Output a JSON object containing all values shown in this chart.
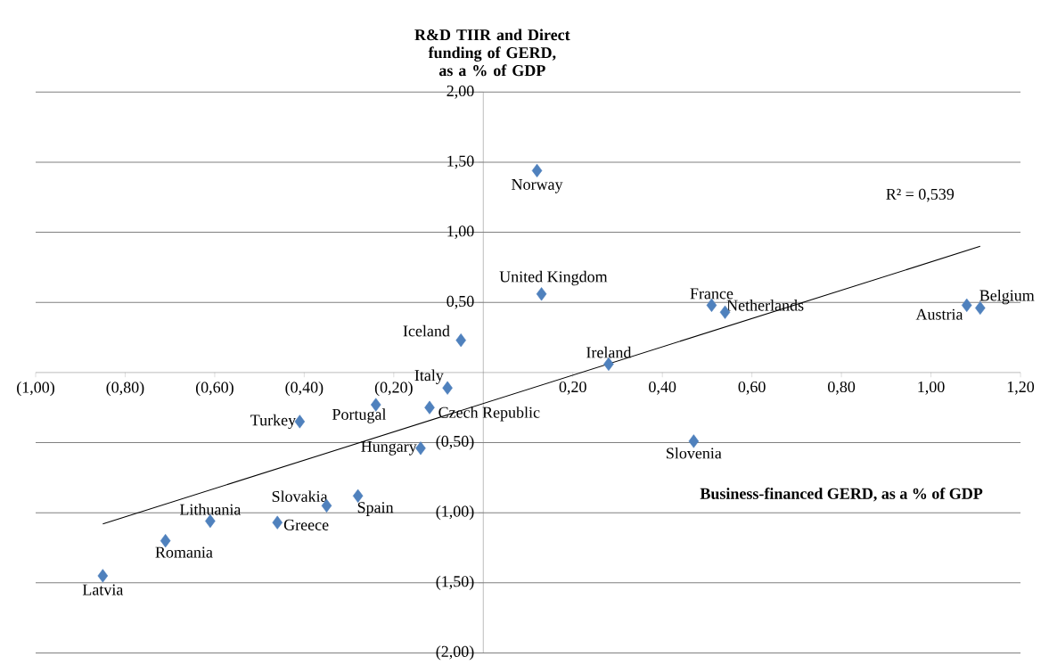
{
  "chart_data": {
    "type": "scatter",
    "ylabel": "R&D TIIR and Direct funding of GERD, as a % of GDP",
    "xlabel": "Business-financed GERD, as a % of GDP",
    "xlim": [
      -1.0,
      1.2
    ],
    "ylim": [
      -2.0,
      2.0
    ],
    "xticks": [
      {
        "value": -1.0,
        "label": "(1,00)"
      },
      {
        "value": -0.8,
        "label": "(0,80)"
      },
      {
        "value": -0.6,
        "label": "(0,60)"
      },
      {
        "value": -0.4,
        "label": "(0,40)"
      },
      {
        "value": -0.2,
        "label": "(0,20)"
      },
      {
        "value": 0,
        "label": null
      },
      {
        "value": 0.2,
        "label": "0,20"
      },
      {
        "value": 0.4,
        "label": "0,40"
      },
      {
        "value": 0.6,
        "label": "0,60"
      },
      {
        "value": 0.8,
        "label": "0,80"
      },
      {
        "value": 1.0,
        "label": "1,00"
      },
      {
        "value": 1.2,
        "label": "1,20"
      }
    ],
    "yticks": [
      {
        "value": -2.0,
        "label": "(2,00)"
      },
      {
        "value": -1.5,
        "label": "(1,50)"
      },
      {
        "value": -1.0,
        "label": "(1,00)"
      },
      {
        "value": -0.5,
        "label": "(0,50)"
      },
      {
        "value": 0,
        "label": null
      },
      {
        "value": 0.5,
        "label": "0,50"
      },
      {
        "value": 1.0,
        "label": "1,00"
      },
      {
        "value": 1.5,
        "label": "1,50"
      },
      {
        "value": 2.0,
        "label": "2,00"
      }
    ],
    "grid": "y",
    "series": [
      {
        "color": "#4f81bd",
        "marker": "diamond",
        "x": [
          0.12,
          0.13,
          0.51,
          0.54,
          1.08,
          1.11,
          0.28,
          -0.05,
          -0.08,
          -0.12,
          -0.24,
          -0.41,
          -0.14,
          0.47,
          -0.35,
          -0.28,
          -0.46,
          -0.61,
          -0.71,
          -0.85
        ],
        "values": [
          1.44,
          0.56,
          0.48,
          0.43,
          0.48,
          0.46,
          0.06,
          0.23,
          -0.11,
          -0.25,
          -0.23,
          -0.35,
          -0.54,
          -0.49,
          -0.95,
          -0.88,
          -1.07,
          -1.06,
          -1.2,
          -1.45
        ]
      },
      {
        "type": "line",
        "color": "#000000",
        "marker": "none",
        "x": [
          -0.85,
          1.11
        ],
        "values": [
          -1.08,
          0.9
        ]
      }
    ],
    "annotations": [
      {
        "text": "Norway",
        "x": 0.12,
        "y": 1.44
      },
      {
        "text": "United Kingdom",
        "x": 0.13,
        "y": 0.56
      },
      {
        "text": "France",
        "x": 0.51,
        "y": 0.48
      },
      {
        "text": "Netherlands",
        "x": 0.54,
        "y": 0.43
      },
      {
        "text": "Austria",
        "x": 1.08,
        "y": 0.48
      },
      {
        "text": "Belgium",
        "x": 1.11,
        "y": 0.46
      },
      {
        "text": "Ireland",
        "x": 0.28,
        "y": 0.06
      },
      {
        "text": "Iceland",
        "x": -0.05,
        "y": 0.23
      },
      {
        "text": "Italy",
        "x": -0.08,
        "y": -0.11
      },
      {
        "text": "Czech Republic",
        "x": -0.12,
        "y": -0.25
      },
      {
        "text": "Portugal",
        "x": -0.24,
        "y": -0.23
      },
      {
        "text": "Turkey",
        "x": -0.41,
        "y": -0.35
      },
      {
        "text": "Hungary",
        "x": -0.14,
        "y": -0.54
      },
      {
        "text": "Slovenia",
        "x": 0.47,
        "y": -0.49
      },
      {
        "text": "Slovakia",
        "x": -0.35,
        "y": -0.95
      },
      {
        "text": "Spain",
        "x": -0.28,
        "y": -0.88
      },
      {
        "text": "Greece",
        "x": -0.46,
        "y": -1.07
      },
      {
        "text": "Lithuania",
        "x": -0.61,
        "y": -1.06
      },
      {
        "text": "Romania",
        "x": -0.71,
        "y": -1.2
      },
      {
        "text": "Latvia",
        "x": -0.85,
        "y": -1.45
      },
      "R² = 0,539"
    ]
  }
}
